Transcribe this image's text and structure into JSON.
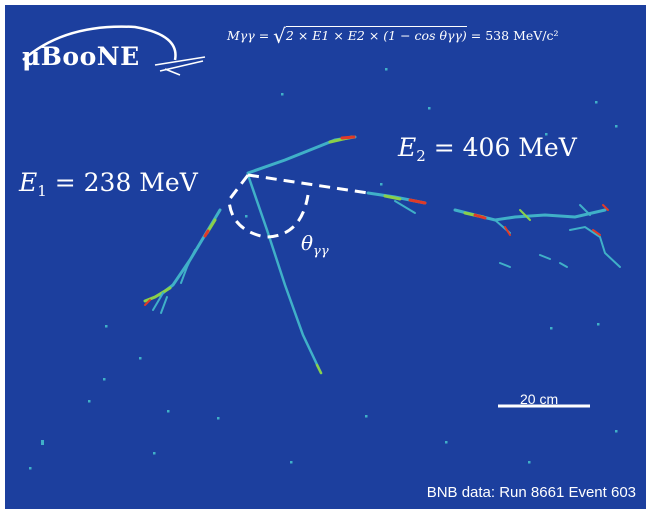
{
  "logo": {
    "text": "μBooNE"
  },
  "formula": {
    "lhs": "Mγγ = ",
    "radicand": "2 × E1 × E2 × (1 − cos θγγ)",
    "rhs": " = 538 MeV/c²"
  },
  "photon1": {
    "symbol": "E",
    "index": "1",
    "value": " = 238 MeV"
  },
  "photon2": {
    "symbol": "E",
    "index": "2",
    "value": " = 406 MeV"
  },
  "opening_angle": {
    "symbol": "θ",
    "index": "γγ"
  },
  "scale_bar": {
    "label": "20 cm"
  },
  "caption": "BNB data: Run 8661 Event 603",
  "colors": {
    "background": "#1c3f9e",
    "track_low": "#40b0c8",
    "track_mid": "#8ad04a",
    "track_high": "#e03a28",
    "annotation": "#ffffff"
  }
}
